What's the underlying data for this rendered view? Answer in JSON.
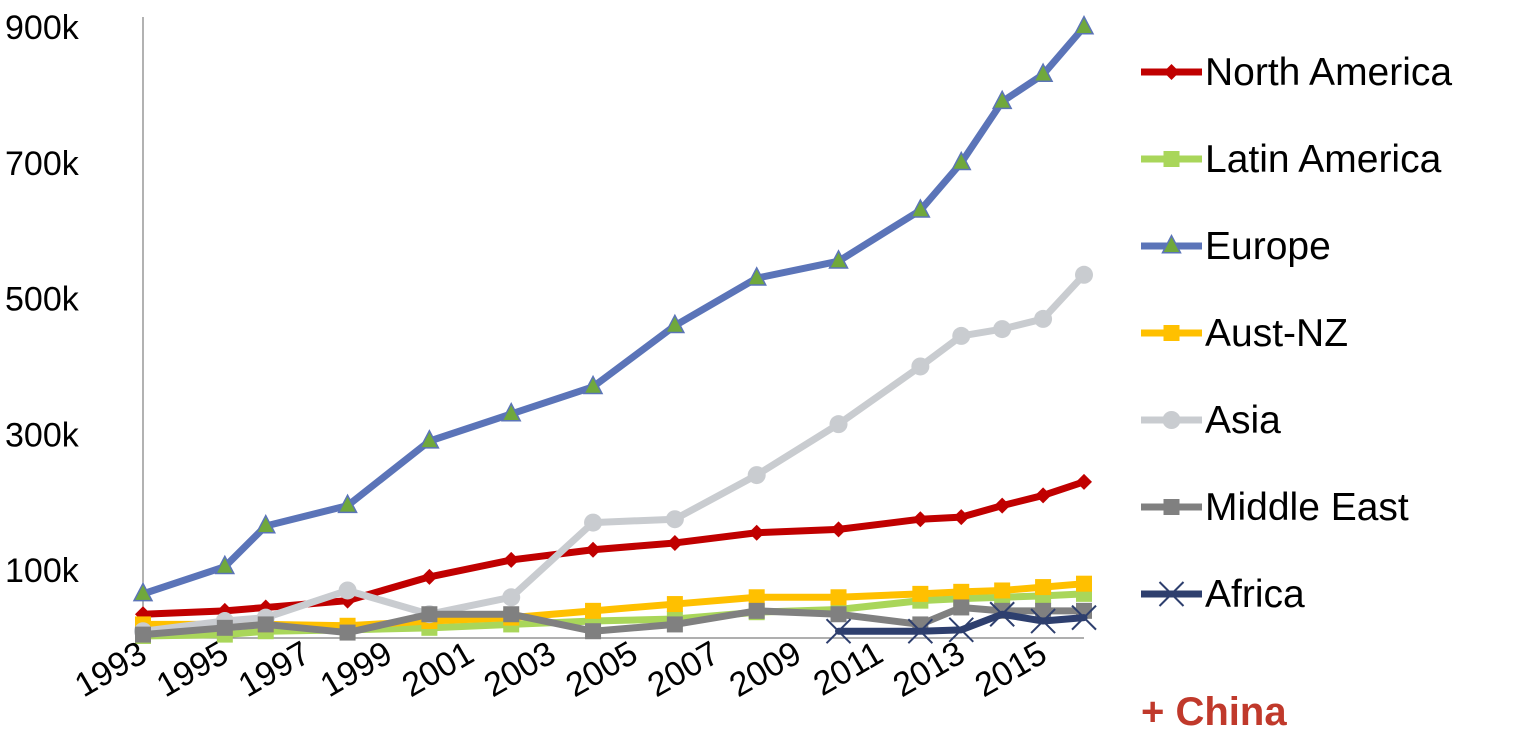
{
  "chart_data": {
    "type": "line",
    "title": "",
    "xlabel": "",
    "ylabel": "",
    "xlim": [
      1993,
      2016
    ],
    "ylim": [
      0,
      900000
    ],
    "x_ticks": [
      "1993",
      "1995",
      "1997",
      "1999",
      "2001",
      "2003",
      "2005",
      "2007",
      "2009",
      "2011",
      "2013",
      "2015"
    ],
    "y_ticks": [
      {
        "value": 100000,
        "label": "100k"
      },
      {
        "value": 300000,
        "label": "300k"
      },
      {
        "value": 500000,
        "label": "500k"
      },
      {
        "value": 700000,
        "label": "700k"
      },
      {
        "value": 900000,
        "label": "900k"
      }
    ],
    "grid": false,
    "legend_position": "right",
    "series": [
      {
        "name": "North America",
        "color": "#C00000",
        "marker": "diamond",
        "x": [
          1993,
          1995,
          1996,
          1998,
          2000,
          2002,
          2004,
          2006,
          2008,
          2010,
          2012,
          2013,
          2014,
          2015,
          2016
        ],
        "y": [
          35000,
          40000,
          45000,
          55000,
          90000,
          115000,
          130000,
          140000,
          155000,
          160000,
          175000,
          178000,
          195000,
          210000,
          230000
        ]
      },
      {
        "name": "Latin America",
        "color": "#A9D65A",
        "marker": "square",
        "x": [
          1993,
          1995,
          1996,
          1998,
          2000,
          2002,
          2004,
          2006,
          2008,
          2010,
          2012,
          2013,
          2014,
          2015,
          2016
        ],
        "y": [
          3000,
          5000,
          10000,
          12000,
          15000,
          20000,
          25000,
          28000,
          38000,
          42000,
          55000,
          58000,
          60000,
          62000,
          65000
        ]
      },
      {
        "name": "Europe",
        "color": "#5B74B8",
        "marker": "triangle",
        "marker_fill": "#70A83C",
        "x": [
          1993,
          1995,
          1996,
          1998,
          2000,
          2002,
          2004,
          2006,
          2008,
          2010,
          2012,
          2013,
          2014,
          2015,
          2016
        ],
        "y": [
          65000,
          105000,
          165000,
          195000,
          290000,
          330000,
          370000,
          460000,
          530000,
          555000,
          630000,
          700000,
          790000,
          830000,
          900000
        ]
      },
      {
        "name": "Aust-NZ",
        "color": "#FFC000",
        "marker": "square",
        "x": [
          1993,
          1995,
          1996,
          1998,
          2000,
          2002,
          2004,
          2006,
          2008,
          2010,
          2012,
          2013,
          2014,
          2015,
          2016
        ],
        "y": [
          20000,
          20000,
          20000,
          18000,
          25000,
          30000,
          40000,
          50000,
          60000,
          60000,
          65000,
          68000,
          70000,
          75000,
          80000
        ]
      },
      {
        "name": "Asia",
        "color": "#C9CCD0",
        "marker": "circle",
        "x": [
          1993,
          1995,
          1996,
          1998,
          2000,
          2002,
          2004,
          2006,
          2008,
          2010,
          2012,
          2013,
          2014,
          2015,
          2016
        ],
        "y": [
          10000,
          25000,
          30000,
          70000,
          35000,
          60000,
          170000,
          175000,
          240000,
          315000,
          400000,
          445000,
          455000,
          470000,
          535000
        ]
      },
      {
        "name": "Middle East",
        "color": "#808080",
        "marker": "square",
        "x": [
          1993,
          1995,
          1996,
          1998,
          2000,
          2002,
          2004,
          2006,
          2008,
          2010,
          2012,
          2013,
          2014,
          2015,
          2016
        ],
        "y": [
          5000,
          15000,
          20000,
          8000,
          35000,
          35000,
          10000,
          20000,
          40000,
          35000,
          20000,
          45000,
          40000,
          40000,
          40000
        ]
      },
      {
        "name": "Africa",
        "color": "#2E3F6E",
        "marker": "x",
        "x": [
          2010,
          2012,
          2013,
          2014,
          2015,
          2016
        ],
        "y": [
          10000,
          10000,
          12000,
          35000,
          25000,
          30000
        ]
      }
    ]
  },
  "note": "+ China"
}
